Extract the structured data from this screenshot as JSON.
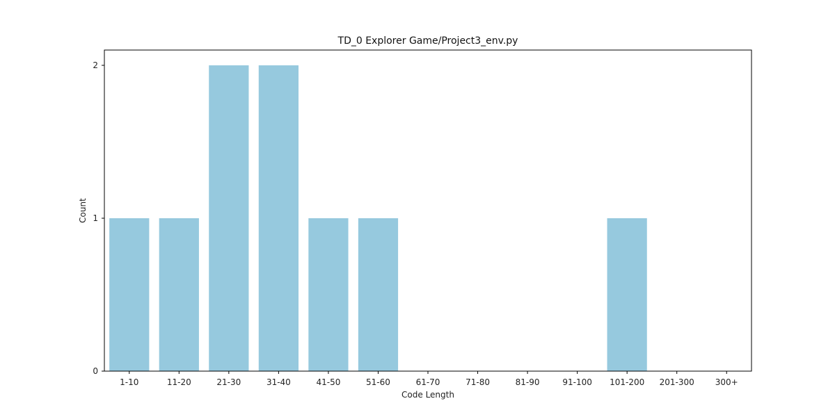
{
  "chart_data": {
    "type": "bar",
    "title": "TD_0 Explorer Game/Project3_env.py",
    "xlabel": "Code Length",
    "ylabel": "Count",
    "categories": [
      "1-10",
      "11-20",
      "21-30",
      "31-40",
      "41-50",
      "51-60",
      "61-70",
      "71-80",
      "81-90",
      "91-100",
      "101-200",
      "201-300",
      "300+"
    ],
    "values": [
      1,
      1,
      2,
      2,
      1,
      1,
      0,
      0,
      0,
      0,
      1,
      0,
      0
    ],
    "ylim": [
      0,
      2.1
    ],
    "yticks": [
      0,
      1,
      2
    ],
    "grid": false,
    "bar_color": "#96c9de"
  }
}
